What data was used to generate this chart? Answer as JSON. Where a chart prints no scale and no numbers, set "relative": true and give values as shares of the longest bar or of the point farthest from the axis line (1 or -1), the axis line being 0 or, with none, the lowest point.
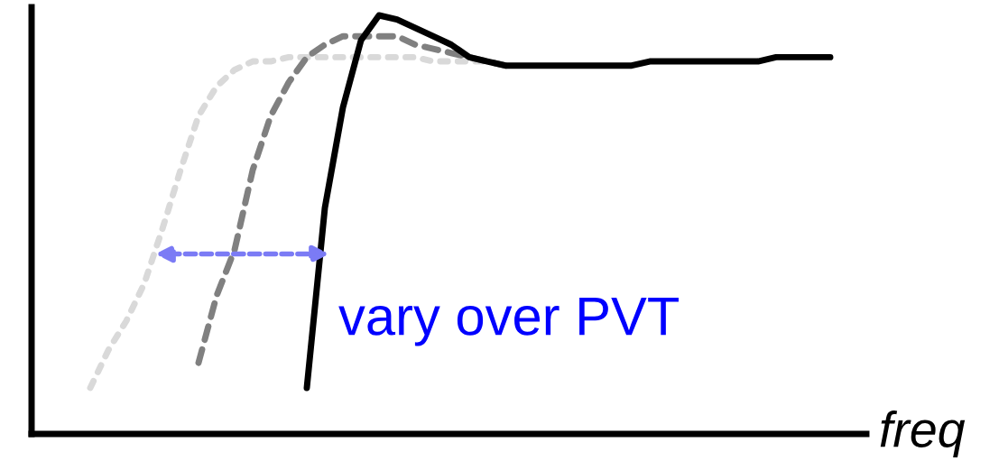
{
  "chart_data": {
    "type": "line",
    "relative": true,
    "xlabel": "freq",
    "legend": false,
    "marker": "none",
    "categories": [
      null,
      null,
      null,
      null,
      null,
      null,
      null,
      null,
      null,
      null,
      null,
      null,
      null,
      null,
      null,
      null,
      null,
      null,
      null,
      null,
      null,
      null,
      null,
      null,
      null,
      null,
      null,
      null,
      null,
      null,
      null,
      null,
      null,
      null,
      null,
      null,
      null,
      null,
      null,
      null,
      null,
      null
    ],
    "series": [
      {
        "color": "#d9d9d9",
        "line_style": "dotted",
        "values": [
          0.11,
          0.2,
          0.27,
          0.36,
          0.49,
          0.63,
          0.76,
          0.83,
          0.87,
          0.89,
          0.89,
          0.9,
          0.9,
          0.9,
          0.9,
          0.9,
          0.9,
          0.9,
          0.9,
          0.89,
          0.89,
          0.89,
          0.89,
          0.88,
          null,
          null,
          null,
          null,
          null,
          null,
          null,
          null,
          null,
          null,
          null,
          null,
          null,
          null,
          null,
          null,
          null,
          null
        ]
      },
      {
        "color": "#808080",
        "line_style": "dashed",
        "values": [
          null,
          null,
          null,
          null,
          null,
          null,
          0.17,
          0.33,
          0.44,
          0.63,
          0.76,
          0.84,
          0.9,
          0.93,
          0.95,
          0.95,
          0.95,
          0.95,
          0.93,
          0.92,
          0.91,
          0.9,
          0.89,
          0.88,
          null,
          null,
          null,
          null,
          null,
          null,
          null,
          null,
          null,
          null,
          null,
          null,
          null,
          null,
          null,
          null,
          null,
          null
        ]
      },
      {
        "color": "#000000",
        "line_style": "solid",
        "values": [
          null,
          null,
          null,
          null,
          null,
          null,
          null,
          null,
          null,
          null,
          null,
          null,
          0.11,
          0.54,
          0.78,
          0.94,
          1.0,
          0.99,
          0.97,
          0.95,
          0.93,
          0.9,
          0.89,
          0.88,
          0.88,
          0.88,
          0.88,
          0.88,
          0.88,
          0.88,
          0.88,
          0.89,
          0.89,
          0.89,
          0.89,
          0.89,
          0.89,
          0.89,
          0.9,
          0.9,
          0.9,
          0.9
        ]
      }
    ],
    "annotations": [
      "vary over PVT"
    ]
  }
}
